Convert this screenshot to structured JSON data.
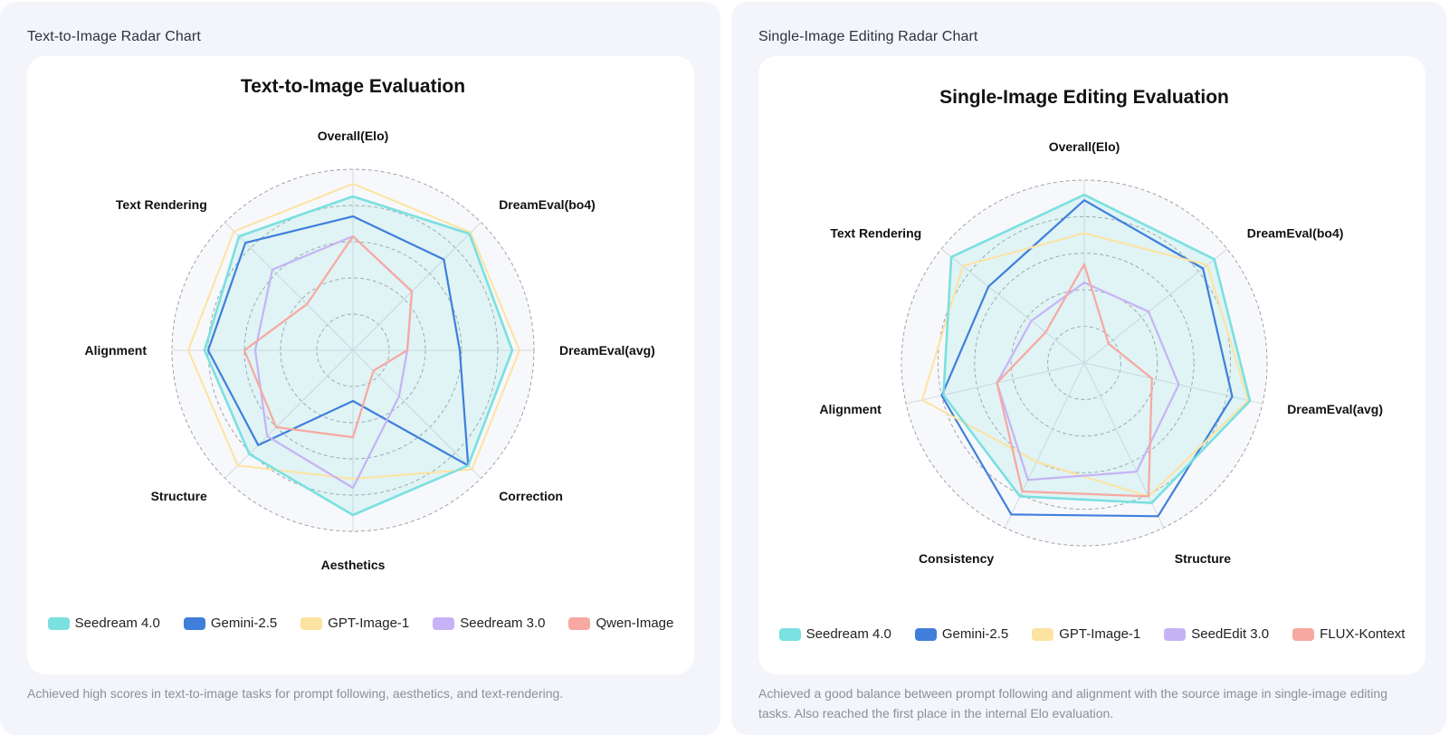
{
  "panels": [
    {
      "heading": "Text-to-Image Radar Chart",
      "caption": "Achieved high scores in text-to-image tasks for prompt following, aesthetics, and text-rendering."
    },
    {
      "heading": "Single-Image Editing Radar Chart",
      "caption": "Achieved a good balance between prompt following and alignment with the source image in single-image editing tasks. Also reached the first place in the internal Elo evaluation."
    }
  ],
  "chart_data": [
    {
      "type": "radar",
      "title": "Text-to-Image Evaluation",
      "categories": [
        "Overall(Elo)",
        "DreamEval(bo4)",
        "DreamEval(avg)",
        "Correction",
        "Aesthetics",
        "Structure",
        "Alignment",
        "Text Rendering"
      ],
      "range": [
        0,
        1
      ],
      "rings": 5,
      "series": [
        {
          "name": "Seedream 4.0",
          "color": "#7ae0e0",
          "values": [
            0.85,
            0.91,
            0.88,
            0.9,
            0.91,
            0.81,
            0.82,
            0.89
          ]
        },
        {
          "name": "Gemini-2.5",
          "color": "#3f7fdb",
          "values": [
            0.74,
            0.71,
            0.59,
            0.9,
            0.28,
            0.74,
            0.8,
            0.84
          ]
        },
        {
          "name": "GPT-Image-1",
          "color": "#fde3a0",
          "values": [
            0.92,
            0.92,
            0.92,
            0.93,
            0.71,
            0.9,
            0.91,
            0.93
          ]
        },
        {
          "name": "Seedream 3.0",
          "color": "#c6b3f5",
          "values": [
            0.63,
            0.46,
            0.3,
            0.36,
            0.76,
            0.67,
            0.54,
            0.63
          ]
        },
        {
          "name": "Qwen-Image",
          "color": "#f7a8a0",
          "values": [
            0.63,
            0.46,
            0.3,
            0.16,
            0.48,
            0.6,
            0.6,
            0.36
          ]
        }
      ]
    },
    {
      "type": "radar",
      "title": "Single-Image Editing Evaluation",
      "categories": [
        "Overall(Elo)",
        "DreamEval(bo4)",
        "DreamEval(avg)",
        "Structure",
        "Consistency",
        "Alignment",
        "Text Rendering"
      ],
      "range": [
        0,
        1
      ],
      "rings": 5,
      "series": [
        {
          "name": "Seedream 4.0",
          "color": "#7ae0e0",
          "values": [
            0.92,
            0.91,
            0.93,
            0.85,
            0.81,
            0.79,
            0.93
          ]
        },
        {
          "name": "Gemini-2.5",
          "color": "#3f7fdb",
          "values": [
            0.89,
            0.83,
            0.83,
            0.93,
            0.92,
            0.8,
            0.67
          ]
        },
        {
          "name": "GPT-Image-1",
          "color": "#fde3a0",
          "values": [
            0.71,
            0.86,
            0.92,
            0.81,
            0.6,
            0.91,
            0.85
          ]
        },
        {
          "name": "SeedEdit 3.0",
          "color": "#c6b3f5",
          "values": [
            0.44,
            0.45,
            0.53,
            0.66,
            0.71,
            0.49,
            0.37
          ]
        },
        {
          "name": "FLUX-Kontext",
          "color": "#f7a8a0",
          "values": [
            0.54,
            0.17,
            0.38,
            0.81,
            0.78,
            0.49,
            0.27
          ]
        }
      ]
    }
  ]
}
